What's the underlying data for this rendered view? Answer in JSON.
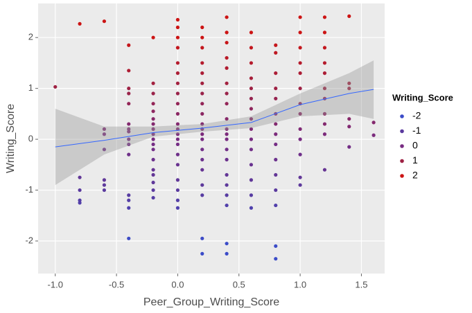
{
  "chart_data": {
    "type": "scatter",
    "x_label": "Peer_Group_Writing_Score",
    "y_label": "Writing_Score",
    "xlim": [
      -1.14,
      1.69
    ],
    "ylim": [
      -2.64,
      2.67
    ],
    "xticks": [
      {
        "value": -1,
        "label": "-1.0"
      },
      -0.5,
      {
        "value": 0,
        "label": "0.0"
      },
      0.5,
      {
        "value": 1,
        "label": "1.0"
      },
      1.5
    ],
    "yticks": [
      -2,
      -1,
      0,
      1,
      2
    ],
    "grid": true,
    "background": "#ebebeb",
    "series": [
      {
        "x": [
          -1.0,
          -0.8,
          -0.8,
          -0.8,
          -0.8,
          -0.8,
          -0.6,
          -0.6,
          -0.6,
          -0.6,
          -0.6,
          -0.6,
          -0.6,
          -0.4,
          -0.4,
          -0.4,
          -0.4,
          -0.4,
          -0.4,
          -0.4,
          -0.4,
          -0.4,
          -0.4,
          -0.4,
          -0.4,
          -0.4,
          -0.4,
          -0.4,
          -0.2,
          -0.2,
          -0.2,
          -0.2,
          -0.2,
          -0.2,
          -0.2,
          -0.2,
          -0.2,
          -0.2,
          -0.2,
          -0.2,
          -0.2,
          -0.2,
          -0.2,
          -0.2,
          -0.2,
          -0.2,
          0,
          0,
          0,
          0,
          0,
          0,
          0,
          0,
          0,
          0,
          0,
          0,
          0,
          0,
          0,
          0,
          0,
          0,
          0,
          0,
          0,
          0.2,
          0.2,
          0.2,
          0.2,
          0.2,
          0.2,
          0.2,
          0.2,
          0.2,
          0.2,
          0.2,
          0.2,
          0.2,
          0.2,
          0.2,
          0.2,
          0.2,
          0.2,
          0.2,
          0.2,
          0.4,
          0.4,
          0.4,
          0.4,
          0.4,
          0.4,
          0.4,
          0.4,
          0.4,
          0.4,
          0.4,
          0.4,
          0.4,
          0.4,
          0.4,
          0.4,
          0.4,
          0.4,
          0.4,
          0.4,
          0.6,
          0.6,
          0.6,
          0.6,
          0.6,
          0.6,
          0.6,
          0.6,
          0.6,
          0.6,
          0.6,
          0.6,
          0.6,
          0.6,
          0.6,
          0.8,
          0.8,
          0.8,
          0.8,
          0.8,
          0.8,
          0.8,
          0.8,
          0.8,
          0.8,
          0.8,
          0.8,
          0.8,
          0.8,
          0.8,
          1.0,
          1.0,
          1.0,
          1.0,
          1.0,
          1.0,
          1.0,
          1.0,
          1.0,
          1.0,
          1.0,
          1.0,
          1.0,
          1.2,
          1.2,
          1.2,
          1.2,
          1.2,
          1.2,
          1.2,
          1.2,
          1.2,
          1.2,
          1.2,
          1.4,
          1.4,
          1.4,
          1.4,
          1.4,
          1.4,
          1.6,
          1.6
        ],
        "values": [
          1.03,
          2.27,
          -0.75,
          -1.0,
          -1.2,
          -1.25,
          2.32,
          0.2,
          0.1,
          -0.2,
          -0.8,
          -0.9,
          -1.0,
          1.85,
          1.35,
          1.0,
          0.9,
          0.7,
          0.3,
          0.2,
          0.15,
          0.0,
          -0.1,
          -0.3,
          -1.1,
          -1.2,
          -1.35,
          -1.95,
          2.0,
          1.1,
          0.9,
          0.7,
          0.55,
          0.4,
          0.3,
          0.2,
          0.1,
          0,
          -0.1,
          -0.2,
          -0.4,
          -0.6,
          -0.7,
          -0.85,
          -1.0,
          -1.15,
          2.35,
          2.2,
          2.0,
          1.8,
          1.5,
          1.3,
          1.1,
          0.9,
          0.7,
          0.5,
          0.3,
          0.2,
          0.1,
          0,
          -0.1,
          -0.3,
          -0.5,
          -0.8,
          -1.0,
          -1.2,
          -1.35,
          2.2,
          2.0,
          1.8,
          1.5,
          1.3,
          1.1,
          0.9,
          0.7,
          0.5,
          0.3,
          0.2,
          0.1,
          0,
          -0.2,
          -0.4,
          -0.6,
          -0.9,
          -1.1,
          -1.95,
          -2.25,
          2.4,
          2.1,
          1.9,
          1.6,
          1.4,
          1.1,
          0.9,
          0.7,
          0.4,
          0.2,
          0.1,
          0,
          -0.2,
          -0.4,
          -0.7,
          -0.9,
          -1.1,
          -1.3,
          -2.05,
          -2.25,
          2.1,
          1.8,
          1.5,
          1.2,
          1.0,
          0.8,
          0.6,
          0.4,
          0.2,
          0,
          -0.2,
          -0.5,
          -0.8,
          -1.1,
          -1.35,
          1.85,
          1.7,
          1.3,
          1.0,
          0.8,
          0.5,
          0.3,
          0.1,
          -0.1,
          -0.4,
          -0.7,
          -1.0,
          -1.3,
          -2.1,
          -2.35,
          2.4,
          2.1,
          1.8,
          1.5,
          1.3,
          1.0,
          0.7,
          0.5,
          0.2,
          0,
          -0.3,
          -0.75,
          -0.9,
          2.4,
          2.1,
          1.8,
          1.5,
          1.3,
          1.0,
          0.8,
          0.5,
          0.3,
          0.1,
          -0.6,
          2.42,
          1.1,
          1.0,
          0.4,
          0.25,
          -0.15,
          0.33,
          0.08
        ]
      }
    ],
    "smooth": {
      "color": "#3366ff",
      "band_color": "#999999",
      "x": [
        -1.0,
        -0.6,
        -0.2,
        0.2,
        0.6,
        1.0,
        1.4,
        1.6
      ],
      "values": [
        -0.15,
        -0.02,
        0.13,
        0.22,
        0.33,
        0.68,
        0.9,
        0.98
      ],
      "lower": [
        -0.9,
        -0.3,
        0.05,
        0.15,
        0.22,
        0.45,
        0.5,
        0.4
      ],
      "upper": [
        0.6,
        0.25,
        0.25,
        0.3,
        0.45,
        0.9,
        1.3,
        1.55
      ]
    },
    "legend": {
      "title": "Writing_Score",
      "values": [
        -2,
        -1,
        0,
        1,
        2
      ],
      "colors": [
        "#3b4cc8",
        "#5a3a9e",
        "#782c82",
        "#9e2244",
        "#cc1414"
      ]
    }
  }
}
